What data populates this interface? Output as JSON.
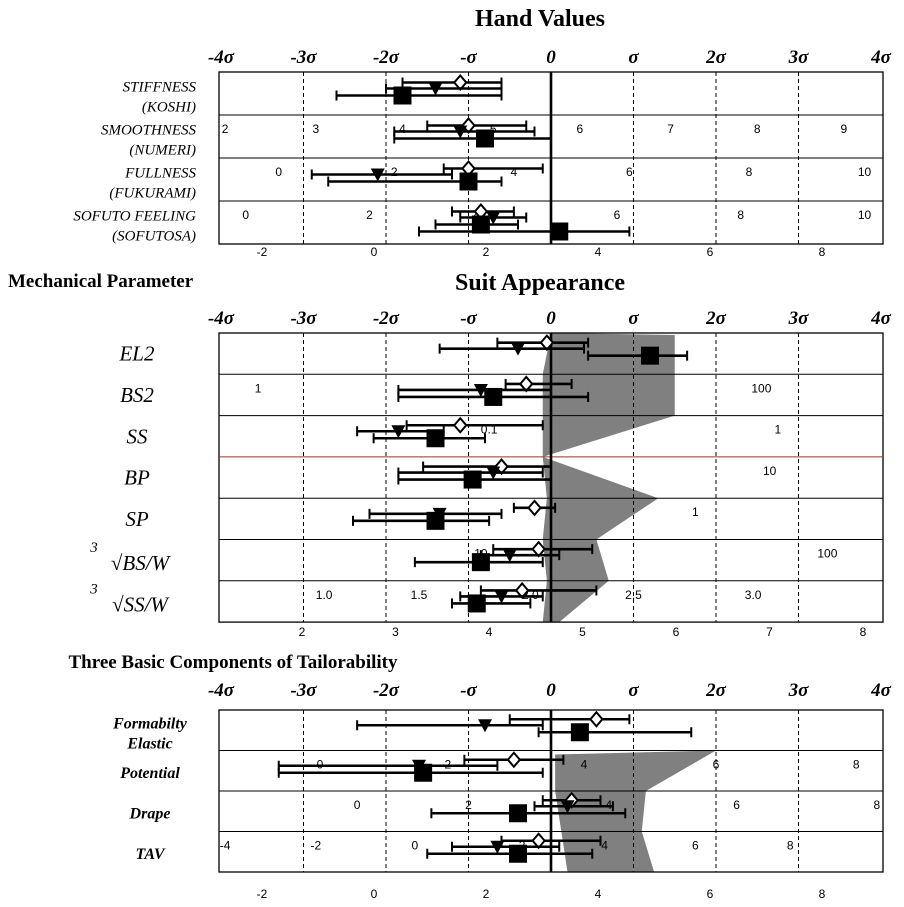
{
  "sigma_labels": [
    "-4σ",
    "-3σ",
    "-2σ",
    "-σ",
    "0",
    "σ",
    "2σ",
    "3σ",
    "4σ"
  ],
  "sigma_ticks": [
    -4,
    -3,
    -2,
    -1,
    0,
    1,
    2,
    3,
    4
  ],
  "colors": {
    "line": "#000000",
    "band": "#808080",
    "bp_line": "#8b3a2a"
  },
  "chart_data": [
    {
      "type": "scatter",
      "title": "Hand Values",
      "x_scale": "sigma",
      "xlim": [
        -4,
        4
      ],
      "bottom_axis": {
        "ticks": [
          "-2",
          "0",
          "2",
          "4",
          "6",
          "8"
        ]
      },
      "rows": [
        {
          "label": [
            "STIFFNESS",
            "(KOSHI)"
          ],
          "scale_labels": [],
          "markers": [
            {
              "shape": "diamond",
              "mean": -1.1,
              "lo": -1.8,
              "hi": -0.6
            },
            {
              "shape": "triangle",
              "mean": -1.4,
              "lo": -2.0,
              "hi": -0.6
            },
            {
              "shape": "square",
              "mean": -1.8,
              "lo": -2.6,
              "hi": -0.6
            }
          ]
        },
        {
          "label": [
            "SMOOTHNESS",
            "(NUMERI)"
          ],
          "scale_labels": [
            {
              "text": "2",
              "s": -3.95
            },
            {
              "text": "3",
              "s": -2.85
            },
            {
              "text": "4",
              "s": -1.8
            },
            {
              "text": "5",
              "s": -0.7
            },
            {
              "text": "6",
              "s": 0.35
            },
            {
              "text": "7",
              "s": 1.45
            },
            {
              "text": "8",
              "s": 2.5
            },
            {
              "text": "9",
              "s": 3.55
            }
          ],
          "markers": [
            {
              "shape": "diamond",
              "mean": -1.0,
              "lo": -1.5,
              "hi": -0.3
            },
            {
              "shape": "triangle",
              "mean": -1.1,
              "lo": -1.9,
              "hi": -0.2
            },
            {
              "shape": "square",
              "mean": -0.8,
              "lo": -1.9,
              "hi": 0.0
            }
          ]
        },
        {
          "label": [
            "FULLNESS",
            "(FUKURAMI)"
          ],
          "scale_labels": [
            {
              "text": "0",
              "s": -3.3
            },
            {
              "text": "2",
              "s": -1.9
            },
            {
              "text": "4",
              "s": -0.45
            },
            {
              "text": "6",
              "s": 0.95
            },
            {
              "text": "8",
              "s": 2.4
            },
            {
              "text": "10",
              "s": 3.8
            }
          ],
          "markers": [
            {
              "shape": "diamond",
              "mean": -1.0,
              "lo": -1.3,
              "hi": -0.1
            },
            {
              "shape": "triangle",
              "mean": -2.1,
              "lo": -2.9,
              "hi": -1.2
            },
            {
              "shape": "square",
              "mean": -1.0,
              "lo": -2.7,
              "hi": -0.6
            }
          ]
        },
        {
          "label": [
            "SOFUTO FEELING",
            "(SOFUTOSA)"
          ],
          "scale_labels": [
            {
              "text": "0",
              "s": -3.7
            },
            {
              "text": "2",
              "s": -2.2
            },
            {
              "text": "4",
              "s": -0.9
            },
            {
              "text": "6",
              "s": 0.8
            },
            {
              "text": "8",
              "s": 2.3
            },
            {
              "text": "10",
              "s": 3.8
            }
          ],
          "markers": [
            {
              "shape": "diamond",
              "mean": -0.85,
              "lo": -1.2,
              "hi": -0.45
            },
            {
              "shape": "triangle",
              "mean": -0.7,
              "lo": -1.1,
              "hi": -0.3
            },
            {
              "shape": "square",
              "mean": -0.85,
              "lo": -1.4,
              "hi": -0.4
            },
            {
              "shape": "square",
              "mean": 0.1,
              "lo": -1.6,
              "hi": 0.95
            }
          ]
        }
      ]
    },
    {
      "type": "scatter",
      "title": "Suit Appearance",
      "x_scale": "sigma",
      "xlim": [
        -4,
        4
      ],
      "bottom_axis": {
        "ticks": [
          "2",
          "3",
          "4",
          "5",
          "6",
          "7",
          "8"
        ]
      },
      "rows": [
        {
          "label": "EL2",
          "scale_labels": [],
          "markers": [
            {
              "shape": "diamond",
              "mean": -0.05,
              "lo": -0.65,
              "hi": 0.45
            },
            {
              "shape": "triangle",
              "mean": -0.4,
              "lo": -1.35,
              "hi": 0.4
            },
            {
              "shape": "square",
              "mean": 1.2,
              "lo": 0.45,
              "hi": 1.65
            }
          ]
        },
        {
          "label": "BS2",
          "scale_labels": [
            {
              "text": "1",
              "s": -3.55
            },
            {
              "text": "100",
              "s": 2.55
            }
          ],
          "markers": [
            {
              "shape": "diamond",
              "mean": -0.3,
              "lo": -0.55,
              "hi": 0.25
            },
            {
              "shape": "triangle",
              "mean": -0.85,
              "lo": -1.85,
              "hi": 0.0
            },
            {
              "shape": "square",
              "mean": -0.7,
              "lo": -1.85,
              "hi": 0.45
            }
          ]
        },
        {
          "label": "SS",
          "scale_labels": [
            {
              "text": "0.1",
              "s": -0.75
            },
            {
              "text": "1",
              "s": 2.75
            }
          ],
          "markers": [
            {
              "shape": "diamond",
              "mean": -1.1,
              "lo": -1.75,
              "hi": -0.1
            },
            {
              "shape": "triangle",
              "mean": -1.85,
              "lo": -2.35,
              "hi": -1.3
            },
            {
              "shape": "square",
              "mean": -1.4,
              "lo": -2.15,
              "hi": -0.8
            }
          ]
        },
        {
          "label": "BP",
          "scale_labels": [
            {
              "text": "10",
              "s": 2.65
            }
          ],
          "markers": [
            {
              "shape": "diamond",
              "mean": -0.6,
              "lo": -1.55,
              "hi": 0.0
            },
            {
              "shape": "triangle",
              "mean": -0.7,
              "lo": -1.85,
              "hi": -0.1
            },
            {
              "shape": "square",
              "mean": -0.95,
              "lo": -1.85,
              "hi": 0.0
            }
          ]
        },
        {
          "label": "SP",
          "scale_labels": [
            {
              "text": "1",
              "s": 1.75
            }
          ],
          "markers": [
            {
              "shape": "diamond",
              "mean": -0.2,
              "lo": -0.45,
              "hi": 0.05
            },
            {
              "shape": "triangle",
              "mean": -1.35,
              "lo": -2.2,
              "hi": -0.6
            },
            {
              "shape": "square",
              "mean": -1.4,
              "lo": -2.4,
              "hi": -0.75
            }
          ]
        },
        {
          "label": [
            "3",
            "√BS/W"
          ],
          "scale_labels": [
            {
              "text": "10",
              "s": -0.85
            },
            {
              "text": "100",
              "s": 3.35
            }
          ],
          "markers": [
            {
              "shape": "diamond",
              "mean": -0.15,
              "lo": -0.7,
              "hi": 0.5
            },
            {
              "shape": "triangle",
              "mean": -0.5,
              "lo": -0.85,
              "hi": 0.1
            },
            {
              "shape": "square",
              "mean": -0.85,
              "lo": -1.65,
              "hi": -0.1
            }
          ]
        },
        {
          "label": [
            "3",
            "√SS/W"
          ],
          "scale_labels": [
            {
              "text": "1.0",
              "s": -2.75
            },
            {
              "text": "1.5",
              "s": -1.6
            },
            {
              "text": "2.0",
              "s": -0.25
            },
            {
              "text": "2.5",
              "s": 1.0
            },
            {
              "text": "3.0",
              "s": 2.45
            }
          ],
          "markers": [
            {
              "shape": "diamond",
              "mean": -0.35,
              "lo": -0.85,
              "hi": 0.55
            },
            {
              "shape": "triangle",
              "mean": -0.6,
              "lo": -1.1,
              "hi": -0.1
            },
            {
              "shape": "square",
              "mean": -0.9,
              "lo": -1.2,
              "hi": -0.25
            }
          ]
        }
      ]
    },
    {
      "type": "scatter",
      "title": "Three Basic Components of Tailorability",
      "x_scale": "sigma",
      "xlim": [
        -4,
        4
      ],
      "bottom_axis": {
        "ticks": [
          "-2",
          "0",
          "2",
          "4",
          "6",
          "8"
        ]
      },
      "rows": [
        {
          "label": [
            "Formabilty",
            "Elastic"
          ],
          "scale_labels": [],
          "markers": [
            {
              "shape": "diamond",
              "mean": 0.55,
              "lo": -0.5,
              "hi": 0.95
            },
            {
              "shape": "triangle",
              "mean": -0.8,
              "lo": -2.35,
              "hi": -0.1
            },
            {
              "shape": "square",
              "mean": 0.35,
              "lo": -0.15,
              "hi": 1.7
            }
          ]
        },
        {
          "label": "Potential",
          "scale_labels": [
            {
              "text": "0",
              "s": -2.8
            },
            {
              "text": "2",
              "s": -1.25
            },
            {
              "text": "4",
              "s": 0.4
            },
            {
              "text": "6",
              "s": 2.0
            },
            {
              "text": "8",
              "s": 3.7
            }
          ],
          "markers": [
            {
              "shape": "diamond",
              "mean": -0.45,
              "lo": -1.05,
              "hi": 0.15
            },
            {
              "shape": "triangle",
              "mean": -1.6,
              "lo": -3.3,
              "hi": -0.65
            },
            {
              "shape": "square",
              "mean": -1.55,
              "lo": -3.3,
              "hi": -0.1
            }
          ]
        },
        {
          "label": "Drape",
          "scale_labels": [
            {
              "text": "0",
              "s": -2.35
            },
            {
              "text": "2",
              "s": -1.0
            },
            {
              "text": "4",
              "s": 0.7
            },
            {
              "text": "6",
              "s": 2.25
            },
            {
              "text": "8",
              "s": 3.95
            }
          ],
          "markers": [
            {
              "shape": "diamond",
              "mean": 0.25,
              "lo": -0.1,
              "hi": 0.6
            },
            {
              "shape": "triangle",
              "mean": 0.2,
              "lo": -0.2,
              "hi": 0.75
            },
            {
              "shape": "square",
              "mean": -0.4,
              "lo": -1.45,
              "hi": 0.9
            }
          ]
        },
        {
          "label": "TAV",
          "scale_labels": [
            {
              "text": "-4",
              "s": -3.95
            },
            {
              "text": "-2",
              "s": -2.85
            },
            {
              "text": "0",
              "s": -1.65
            },
            {
              "text": "2",
              "s": -0.35
            },
            {
              "text": "4",
              "s": 0.65
            },
            {
              "text": "6",
              "s": 1.75
            },
            {
              "text": "8",
              "s": 2.9
            }
          ],
          "markers": [
            {
              "shape": "diamond",
              "mean": -0.15,
              "lo": -0.6,
              "hi": 0.6
            },
            {
              "shape": "triangle",
              "mean": -0.65,
              "lo": -1.2,
              "hi": 0.1
            },
            {
              "shape": "square",
              "mean": -0.4,
              "lo": -1.5,
              "hi": 0.5
            }
          ]
        }
      ]
    }
  ]
}
